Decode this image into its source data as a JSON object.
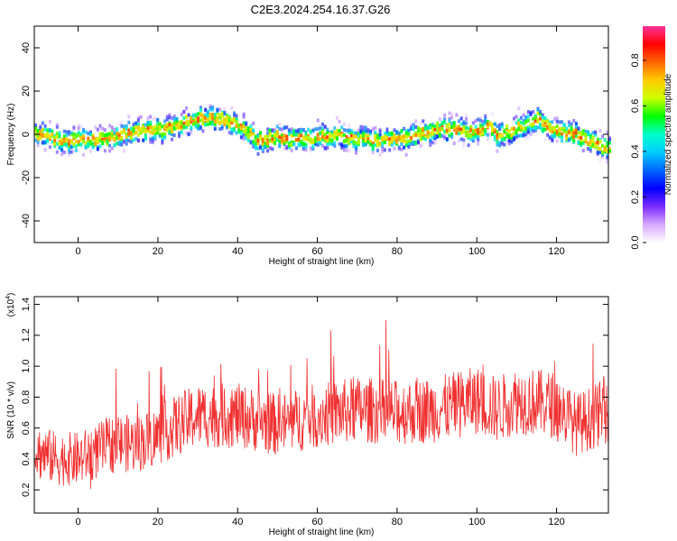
{
  "title": "C2E3.2024.254.16.37.G26",
  "chart_data": [
    {
      "type": "heatmap",
      "xlabel": "Height of straight line (km)",
      "ylabel": "Frequency (Hz)",
      "xlim": [
        -11,
        133
      ],
      "ylim": [
        -50,
        50
      ],
      "xticks": [
        "0",
        "20",
        "40",
        "60",
        "80",
        "100",
        "120"
      ],
      "yticks": [
        "-40",
        "-20",
        "0",
        "20",
        "40"
      ],
      "xtick_values": [
        0,
        20,
        40,
        60,
        80,
        100,
        120
      ],
      "ytick_values": [
        -40,
        -20,
        0,
        20,
        40
      ],
      "ridge": {
        "x": [
          -10,
          -5,
          0,
          5,
          10,
          15,
          20,
          25,
          30,
          35,
          40,
          45,
          50,
          55,
          60,
          65,
          70,
          75,
          80,
          85,
          90,
          95,
          100,
          103,
          105,
          110,
          115,
          120,
          125,
          130,
          133
        ],
        "y": [
          0,
          -3,
          -3,
          -3,
          -1,
          2,
          2,
          4,
          7,
          7,
          4,
          -3,
          -1,
          -2,
          -1,
          -1,
          -2,
          -3,
          -2,
          0,
          3,
          2,
          1,
          5,
          -1,
          3,
          7,
          1,
          0,
          -5,
          -7
        ]
      },
      "colorbar": {
        "label": "Normalized spectral amplitude",
        "range": [
          0,
          0.95
        ],
        "ticks": [
          "0.0",
          "0.2",
          "0.4",
          "0.6",
          "0.8"
        ],
        "tick_values": [
          0,
          0.2,
          0.4,
          0.6,
          0.8
        ],
        "colors": [
          "#ffffff",
          "#d8a8ff",
          "#7a2cff",
          "#0000ff",
          "#0066ff",
          "#00ccff",
          "#00ffcc",
          "#00ff00",
          "#ccff00",
          "#ffcc00",
          "#ff6600",
          "#ff0000",
          "#ff3399"
        ]
      }
    },
    {
      "type": "line",
      "xlabel": "Height of straight line (km)",
      "ylabel": "SNR (10 * v/v)",
      "scale_note": "(x10",
      "scale_exp": "4",
      "scale_close": ")",
      "xlim": [
        -11,
        133
      ],
      "ylim": [
        0.05,
        1.45
      ],
      "xticks": [
        "0",
        "20",
        "40",
        "60",
        "80",
        "100",
        "120"
      ],
      "yticks": [
        "0.2",
        "0.4",
        "0.6",
        "0.8",
        "1.0",
        "1.2",
        "1.4"
      ],
      "xtick_values": [
        0,
        20,
        40,
        60,
        80,
        100,
        120
      ],
      "ytick_values": [
        0.2,
        0.4,
        0.6,
        0.8,
        1.0,
        1.2,
        1.4
      ],
      "series": [
        {
          "color": "#f03030",
          "mean_trend": {
            "x": [
              -11,
              -5,
              0,
              5,
              8,
              15,
              20,
              25,
              30,
              40,
              50,
              60,
              70,
              80,
              90,
              100,
              105,
              110,
              120,
              125,
              133
            ],
            "y": [
              0.45,
              0.4,
              0.4,
              0.45,
              0.5,
              0.5,
              0.55,
              0.62,
              0.68,
              0.68,
              0.62,
              0.68,
              0.72,
              0.7,
              0.72,
              0.78,
              0.72,
              0.78,
              0.75,
              0.62,
              0.72
            ]
          }
        }
      ]
    }
  ]
}
